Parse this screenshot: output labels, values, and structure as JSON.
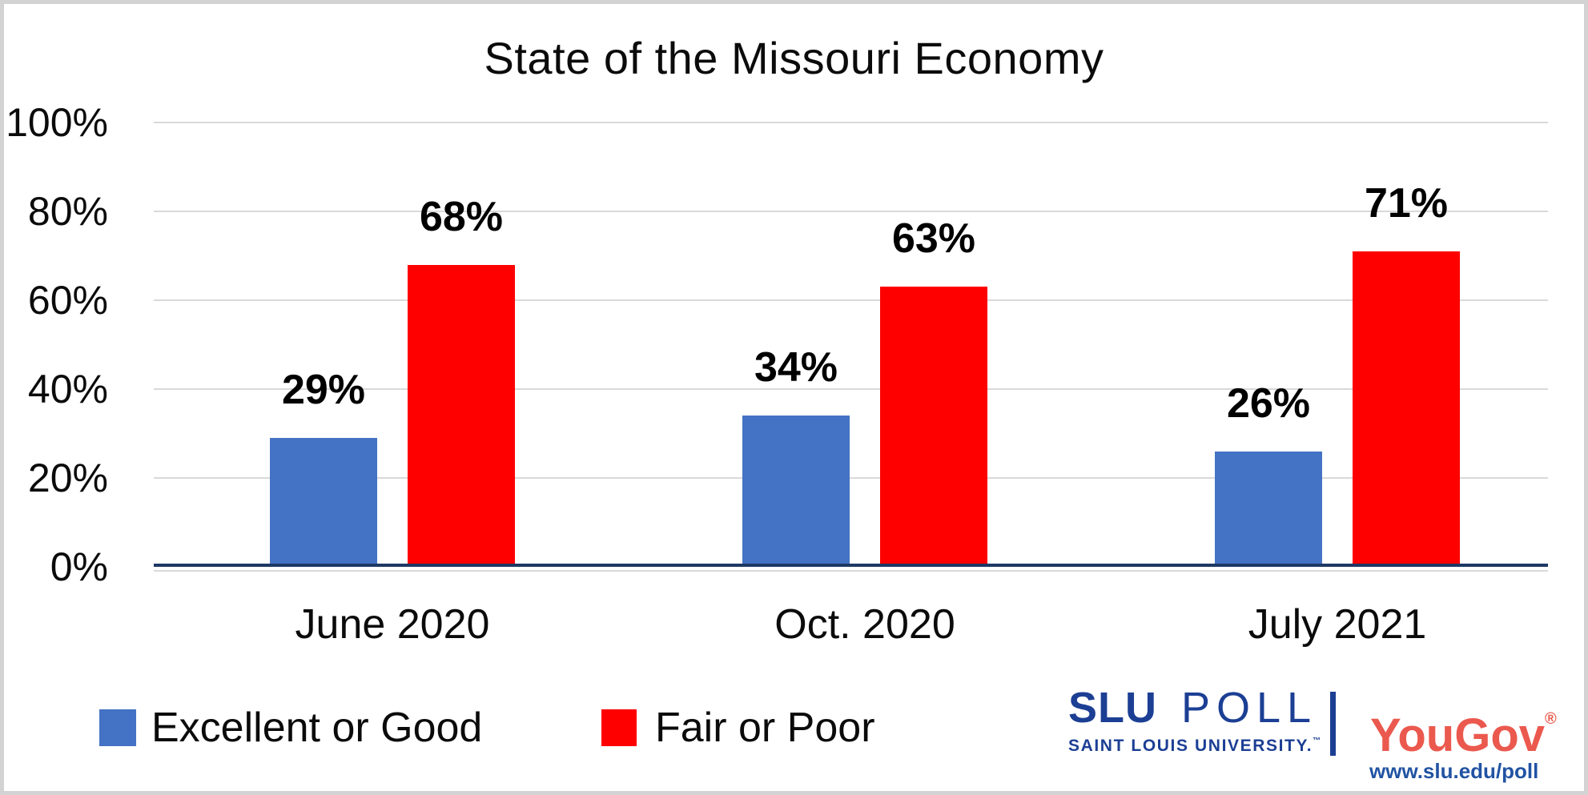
{
  "chart_data": {
    "type": "bar",
    "title": "State of the Missouri Economy",
    "categories": [
      "June 2020",
      "Oct. 2020",
      "July 2021"
    ],
    "series": [
      {
        "name": "Excellent or Good",
        "color": "#4472C4",
        "values": [
          29,
          34,
          26
        ],
        "labels": [
          "29%",
          "34%",
          "26%"
        ]
      },
      {
        "name": "Fair or Poor",
        "color": "#FF0000",
        "values": [
          68,
          63,
          71
        ],
        "labels": [
          "68%",
          "63%",
          "71%"
        ]
      }
    ],
    "xlabel": "",
    "ylabel": "",
    "ylim": [
      0,
      100
    ],
    "y_ticks": [
      "0%",
      "20%",
      "40%",
      "60%",
      "80%",
      "100%"
    ],
    "grid": true,
    "gridline_color": "#D9D9D9",
    "axis_line_color": "#1F3864",
    "legend_position": "bottom-left"
  },
  "legend": {
    "items": [
      {
        "label": "Excellent or Good",
        "color": "#4472C4"
      },
      {
        "label": "Fair or Poor",
        "color": "#FF0000"
      }
    ]
  },
  "footer": {
    "slu_logo": {
      "slu": "SLU",
      "poll": "POLL",
      "subtitle": "SAINT LOUIS UNIVERSITY.",
      "trademark": "™",
      "color": "#1C3F94"
    },
    "yougov_logo": {
      "text": "YouGov",
      "registered": "®",
      "color": "#EB594E"
    },
    "url": "www.slu.edu/poll",
    "url_color": "#2153A3"
  },
  "colors": {
    "background": "#FFFFFF",
    "border": "#D3D3D3",
    "text": "#0B0B0B"
  }
}
